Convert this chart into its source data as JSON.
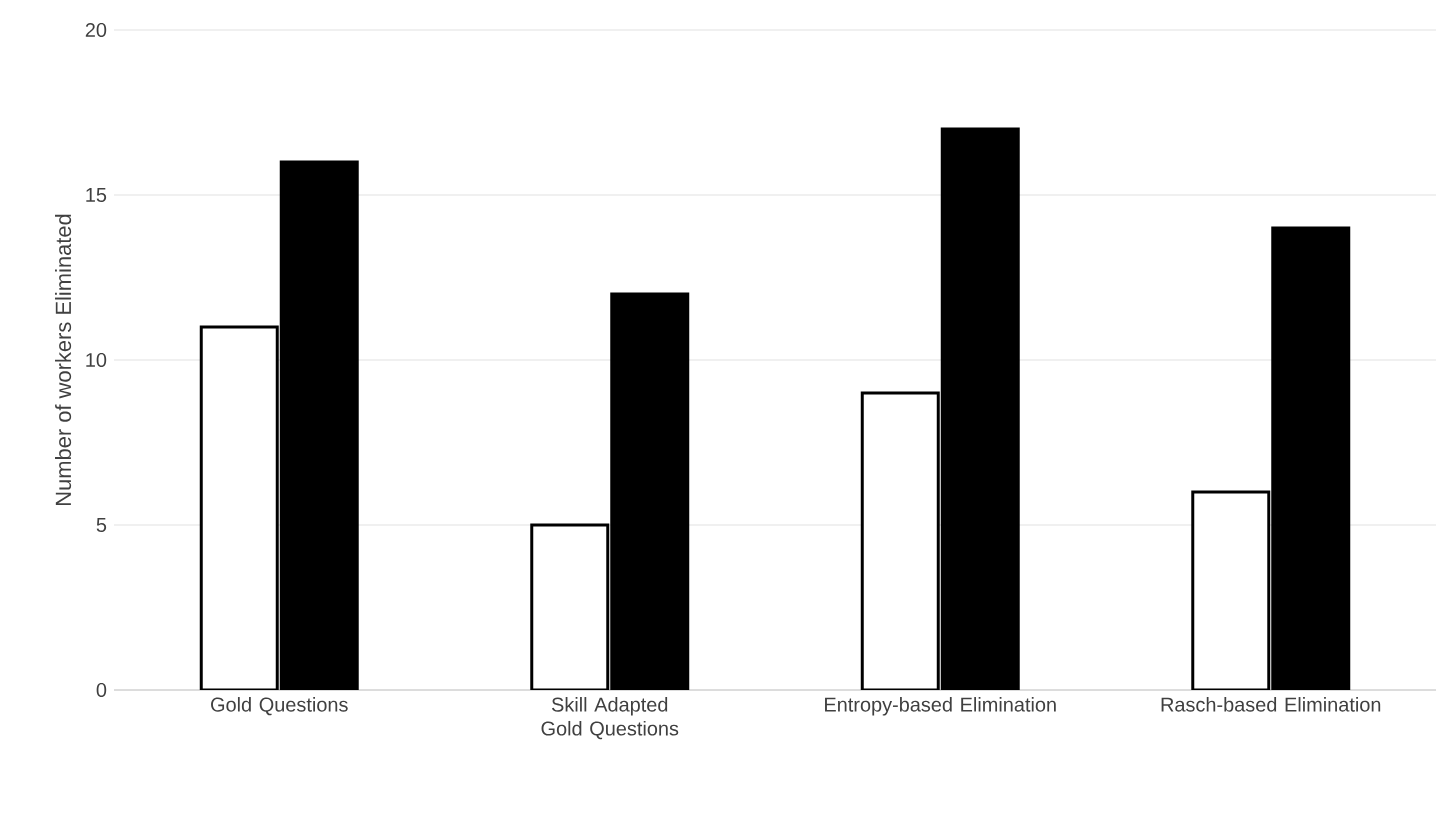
{
  "chart_data": {
    "type": "bar",
    "ylabel": "Number of workers Eliminated",
    "categories": [
      "Gold Questions",
      "Skill Adapted Gold Questions",
      "Entropy-based Elimination",
      "Rasch-based Elimination"
    ],
    "series": [
      {
        "color": "#ffffff",
        "values": [
          11,
          5,
          9,
          6
        ]
      },
      {
        "color": "#000000",
        "values": [
          16,
          12,
          17,
          14
        ]
      }
    ],
    "ylim": [
      0,
      20
    ],
    "yticks": [
      0,
      5,
      10,
      15,
      20
    ],
    "grid": "y"
  }
}
